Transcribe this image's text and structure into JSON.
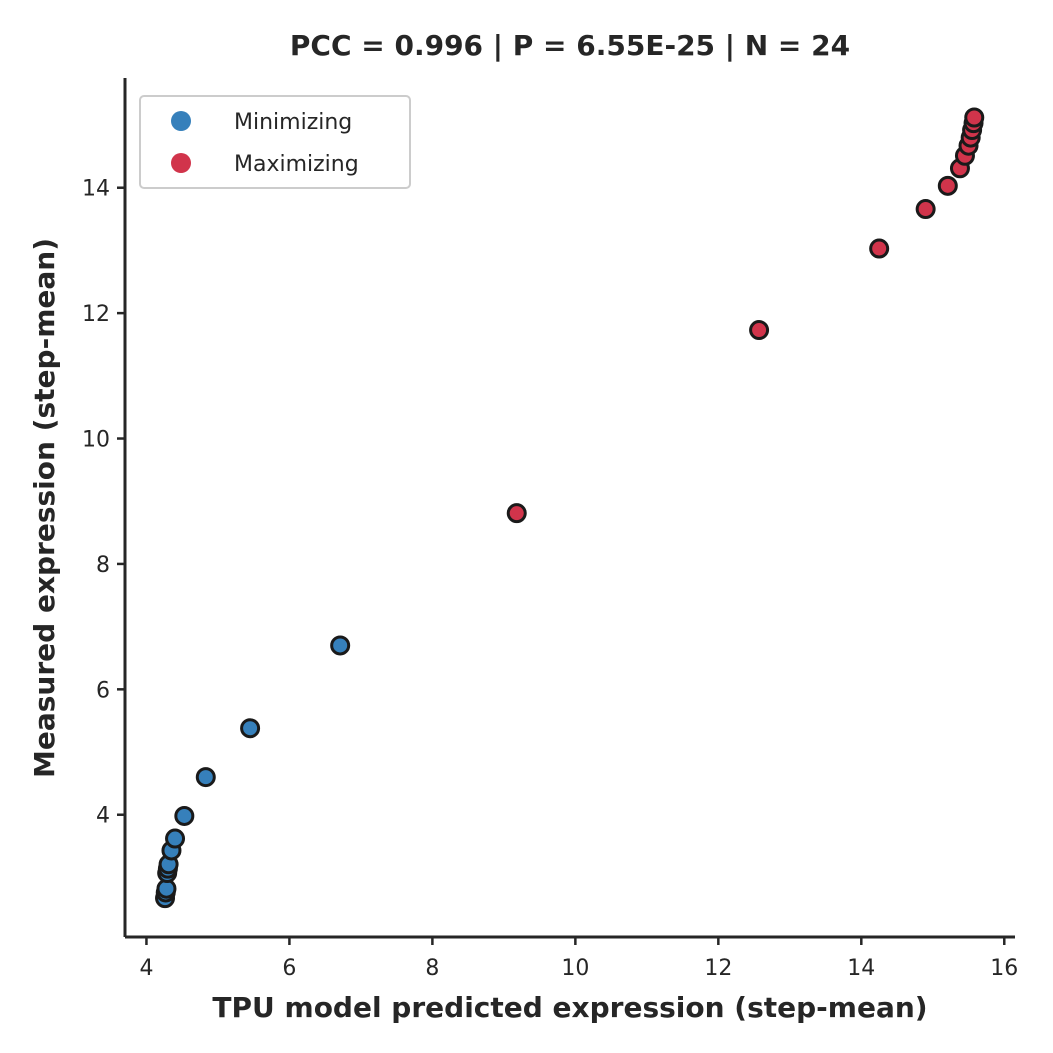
{
  "chart_data": {
    "type": "scatter",
    "title": "PCC =  0.996 | P =  6.55E-25 | N = 24",
    "xlabel": "TPU model predicted expression (step-mean)",
    "ylabel": "Measured expression (step-mean)",
    "xlim": [
      3.7,
      16.15
    ],
    "ylim": [
      2.05,
      15.75
    ],
    "xticks": [
      4,
      6,
      8,
      10,
      12,
      14,
      16
    ],
    "yticks": [
      4,
      6,
      8,
      10,
      12,
      14
    ],
    "xtick_labels": [
      "4",
      "6",
      "8",
      "10",
      "12",
      "14",
      "16"
    ],
    "ytick_labels": [
      "4",
      "6",
      "8",
      "10",
      "12",
      "14"
    ],
    "grid": false,
    "legend_position": "top-left",
    "series": [
      {
        "name": "Minimizing",
        "color": "#3680bb",
        "x": [
          4.26,
          4.27,
          4.28,
          4.29,
          4.3,
          4.31,
          4.35,
          4.4,
          4.53,
          4.83,
          5.45,
          6.71
        ],
        "y": [
          2.67,
          2.76,
          2.82,
          3.07,
          3.14,
          3.21,
          3.43,
          3.62,
          3.98,
          4.6,
          5.38,
          6.7
        ]
      },
      {
        "name": "Maximizing",
        "color": "#d1344b",
        "x": [
          9.18,
          12.57,
          14.25,
          14.9,
          15.21,
          15.38,
          15.45,
          15.5,
          15.53,
          15.55,
          15.57,
          15.58
        ],
        "y": [
          8.81,
          11.73,
          13.03,
          13.66,
          14.03,
          14.31,
          14.51,
          14.67,
          14.8,
          14.92,
          15.03,
          15.12
        ]
      }
    ]
  }
}
